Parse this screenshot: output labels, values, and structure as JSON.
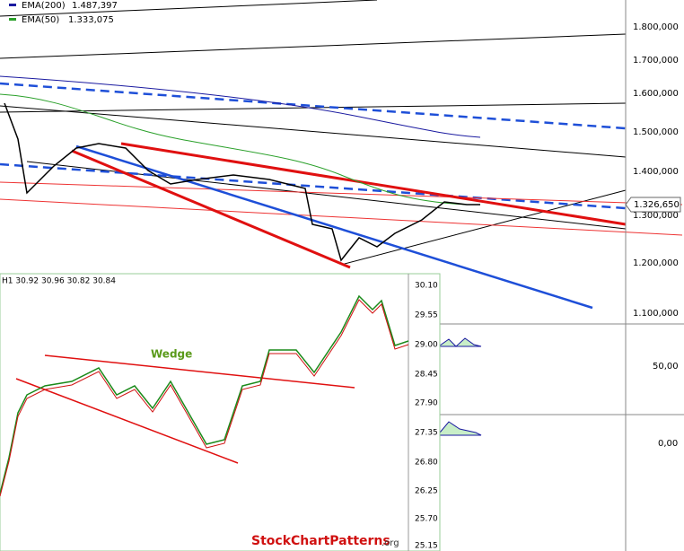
{
  "legend": [
    {
      "name": "EMA(200)",
      "value": "1.487,397"
    },
    {
      "name": "EMA(50)",
      "value": "1.333,075"
    }
  ],
  "price_axis": [
    "1.800,000",
    "1.700,000",
    "1.600,000",
    "1.500,000",
    "1.400,000",
    "1.300,000",
    "1.200,000",
    "1.100,000"
  ],
  "current_price": "1.326,650",
  "indicator_axes": [
    "50,00",
    "0,00"
  ],
  "inset": {
    "header": "H1 30.92 30.96 30.82 30.84",
    "axis": [
      "30.10",
      "29.55",
      "29.00",
      "28.45",
      "27.90",
      "27.35",
      "26.80",
      "26.25",
      "25.70",
      "25.15"
    ],
    "annotation": "Wedge",
    "watermark": {
      "brand": "StockChartPatterns",
      "suffix": ".org"
    }
  }
}
